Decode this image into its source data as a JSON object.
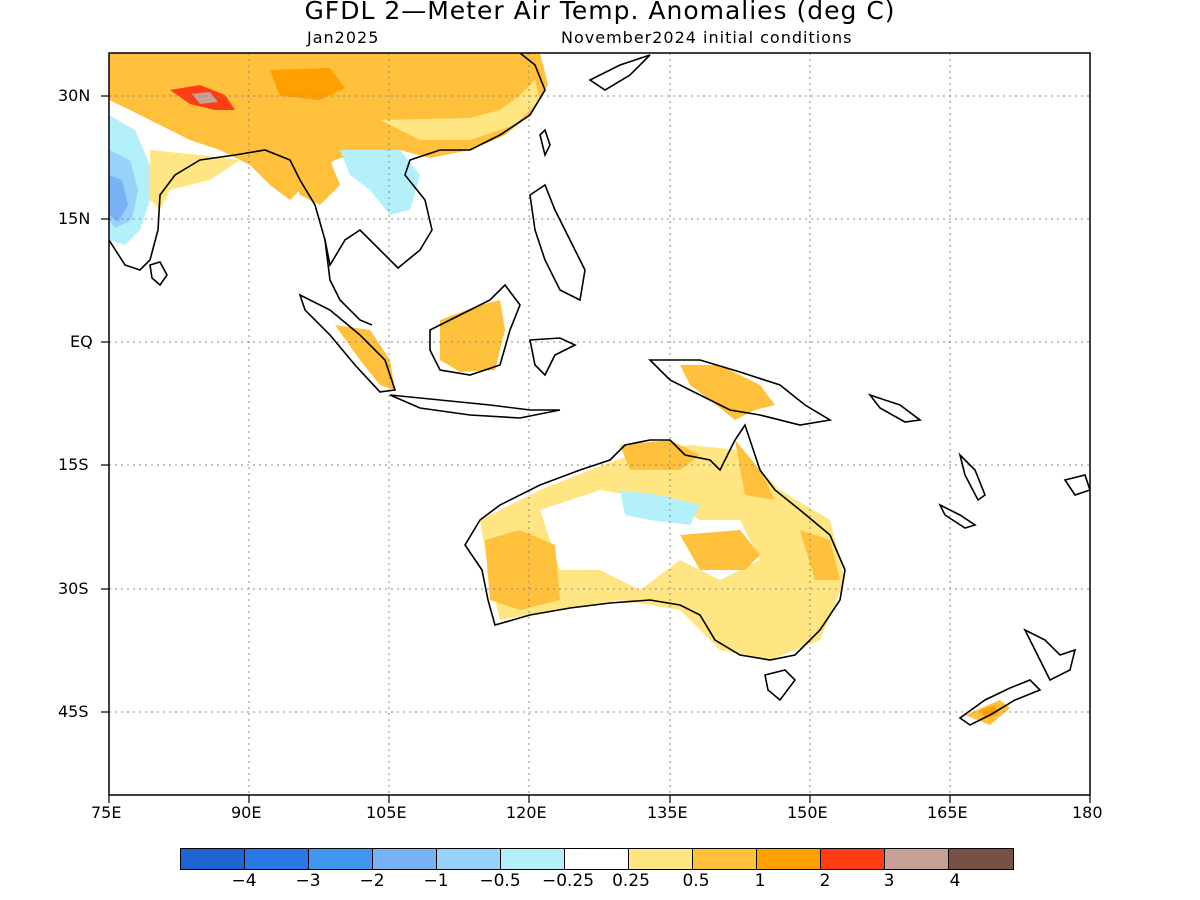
{
  "header": {
    "title": "GFDL 2—Meter Air Temp. Anomalies (deg C)",
    "valid_month": "Jan2025",
    "init": "November2024 initial conditions"
  },
  "axes": {
    "y_ticks": [
      "30N",
      "15N",
      "EQ",
      "15S",
      "30S",
      "45S"
    ],
    "y_values": [
      30,
      15,
      0,
      -15,
      -30,
      -45
    ],
    "x_ticks": [
      "75E",
      "90E",
      "105E",
      "120E",
      "135E",
      "150E",
      "165E",
      "180"
    ],
    "x_values": [
      75,
      90,
      105,
      120,
      135,
      150,
      165,
      180
    ],
    "lon_range": [
      75,
      180
    ],
    "lat_range": [
      -55,
      35
    ],
    "grid": "dotted"
  },
  "colorbar": {
    "labels": [
      "−4",
      "−3",
      "−2",
      "−1",
      "−0.5",
      "−0.25",
      "0.25",
      "0.5",
      "1",
      "2",
      "3",
      "4"
    ],
    "colors": [
      "#1e64d2",
      "#2878e6",
      "#4196f0",
      "#78b4f5",
      "#96d2fa",
      "#b4f0fa",
      "#ffffff",
      "#ffe682",
      "#ffc03c",
      "#ffa000",
      "#ff3c14",
      "#c8a096",
      "#785046"
    ]
  }
}
